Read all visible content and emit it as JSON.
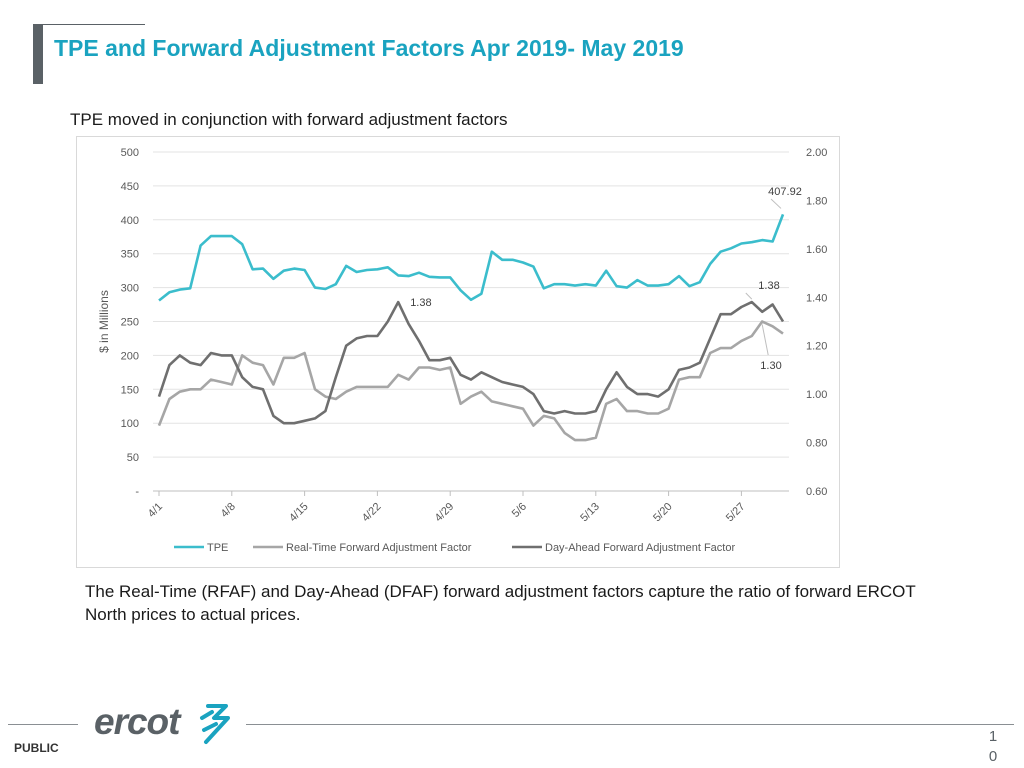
{
  "header": {
    "title": "TPE and Forward Adjustment Factors Apr 2019- May 2019",
    "subtitle": "TPE moved in conjunction with forward adjustment factors"
  },
  "body": {
    "description": "The Real-Time (RFAF) and Day-Ahead (DFAF) forward adjustment factors capture the ratio of forward ERCOT North prices to actual prices."
  },
  "footer": {
    "public_label": "PUBLIC",
    "page_number": "10",
    "logo_text": "ercot"
  },
  "colors": {
    "title": "#1aa3c0",
    "tpe": "#3bbdcc",
    "rfaf": "#a6a6a6",
    "dfaf": "#6f6f6f"
  },
  "chart_data": {
    "type": "line",
    "title": "",
    "xlabel": "",
    "ylabel": "$ in Millions",
    "ylim": [
      0,
      500
    ],
    "y2lim": [
      0.6,
      2.0
    ],
    "y_tick_labels": [
      "-",
      "50",
      "100",
      "150",
      "200",
      "250",
      "300",
      "350",
      "400",
      "450",
      "500"
    ],
    "y2_tick_labels": [
      "0.60",
      "0.80",
      "1.00",
      "1.20",
      "1.40",
      "1.60",
      "1.80",
      "2.00"
    ],
    "x_tick_labels": [
      "4/1",
      "4/8",
      "4/15",
      "4/22",
      "4/29",
      "5/6",
      "5/13",
      "5/20",
      "5/27"
    ],
    "legend_position": "bottom",
    "grid": true,
    "series": [
      {
        "name": "TPE",
        "axis": "left",
        "values": [
          281,
          293,
          297,
          299,
          362,
          376,
          376,
          376,
          364,
          327,
          328,
          313,
          325,
          328,
          326,
          300,
          298,
          305,
          332,
          323,
          326,
          327,
          330,
          318,
          317,
          322,
          316,
          315,
          315,
          296,
          282,
          291,
          353,
          341,
          341,
          337,
          331,
          299,
          305,
          305,
          303,
          305,
          303,
          325,
          302,
          300,
          311,
          303,
          303,
          305,
          317,
          302,
          308,
          335,
          353,
          358,
          365,
          367,
          370,
          368,
          407.92
        ]
      },
      {
        "name": "Real-Time Forward Adjustment Factor",
        "axis": "right",
        "values": [
          0.87,
          0.98,
          1.01,
          1.02,
          1.02,
          1.06,
          1.05,
          1.04,
          1.16,
          1.13,
          1.12,
          1.04,
          1.15,
          1.15,
          1.17,
          1.02,
          0.99,
          0.98,
          1.01,
          1.03,
          1.03,
          1.03,
          1.03,
          1.08,
          1.06,
          1.11,
          1.11,
          1.1,
          1.11,
          0.96,
          0.99,
          1.01,
          0.97,
          0.96,
          0.95,
          0.94,
          0.87,
          0.91,
          0.9,
          0.84,
          0.81,
          0.81,
          0.82,
          0.96,
          0.98,
          0.93,
          0.93,
          0.92,
          0.92,
          0.94,
          1.06,
          1.07,
          1.07,
          1.17,
          1.19,
          1.19,
          1.22,
          1.24,
          1.3,
          1.28,
          1.25
        ]
      },
      {
        "name": "Day-Ahead Forward Adjustment Factor",
        "axis": "right",
        "values": [
          0.99,
          1.12,
          1.16,
          1.13,
          1.12,
          1.17,
          1.16,
          1.16,
          1.07,
          1.03,
          1.02,
          0.91,
          0.88,
          0.88,
          0.89,
          0.9,
          0.93,
          1.07,
          1.2,
          1.23,
          1.24,
          1.24,
          1.3,
          1.38,
          1.29,
          1.22,
          1.14,
          1.14,
          1.15,
          1.08,
          1.06,
          1.09,
          1.07,
          1.05,
          1.04,
          1.03,
          1.0,
          0.93,
          0.92,
          0.93,
          0.92,
          0.92,
          0.93,
          1.02,
          1.09,
          1.03,
          1.0,
          1.0,
          0.99,
          1.02,
          1.1,
          1.11,
          1.13,
          1.23,
          1.33,
          1.33,
          1.36,
          1.38,
          1.34,
          1.37,
          1.3
        ]
      }
    ],
    "annotations": [
      "407.92",
      "1.38",
      "1.38",
      "1.30"
    ]
  }
}
